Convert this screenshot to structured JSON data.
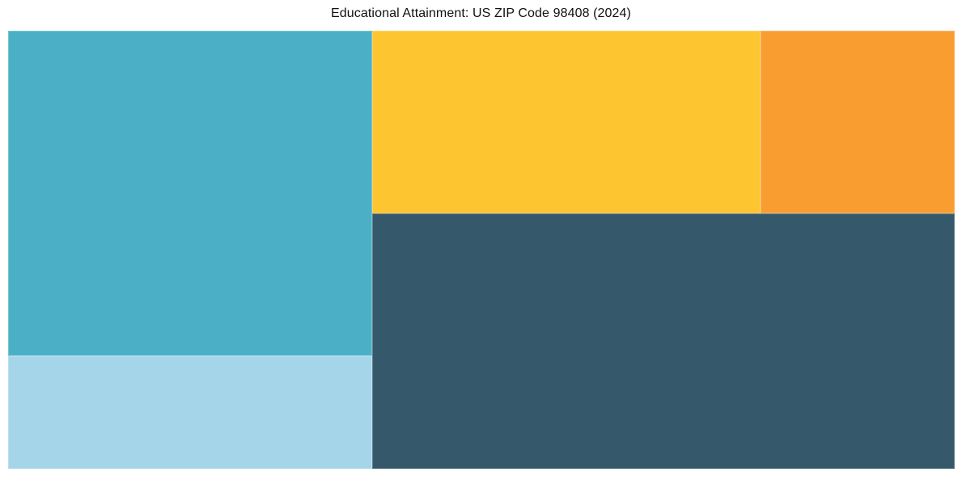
{
  "title": "Educational Attainment: US ZIP Code 98408 (2024)",
  "chart_data": {
    "type": "treemap",
    "title": "Educational Attainment: US ZIP Code 98408 (2024)",
    "legend": "none",
    "background_color": "#FFFFFF",
    "segments": [
      {
        "name": "segment-teal",
        "color": "#4BB0C5",
        "share_pct": 28.6,
        "rect": {
          "x": 0,
          "y": 0,
          "w": 38.5,
          "h": 74.2
        }
      },
      {
        "name": "segment-light-blue",
        "color": "#A5D5E8",
        "share_pct": 9.9,
        "rect": {
          "x": 0,
          "y": 74.2,
          "w": 38.5,
          "h": 25.8
        }
      },
      {
        "name": "segment-amber",
        "color": "#FDC530",
        "share_pct": 17.1,
        "rect": {
          "x": 38.5,
          "y": 0,
          "w": 41.0,
          "h": 41.7
        }
      },
      {
        "name": "segment-orange",
        "color": "#FA9D31",
        "share_pct": 8.5,
        "rect": {
          "x": 79.5,
          "y": 0,
          "w": 20.5,
          "h": 41.7
        }
      },
      {
        "name": "segment-dark-slate",
        "color": "#35596B",
        "share_pct": 35.9,
        "rect": {
          "x": 38.5,
          "y": 41.7,
          "w": 61.5,
          "h": 58.3
        }
      }
    ]
  }
}
